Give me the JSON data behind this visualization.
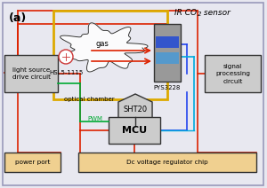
{
  "fig_label": "(a)",
  "bg_color": "#e8e8f0",
  "border_color": "#9999bb",
  "yellow_border": "#ddaa00",
  "gray_box": "#cccccc",
  "tan_box": "#f0d090",
  "red": "#dd2200",
  "blue": "#2244ee",
  "cyan": "#00aadd",
  "green": "#00aa33",
  "dark": "#333333",
  "lw": 1.2,
  "labels": {
    "fig": "(a)",
    "ir_co2": "IR CO",
    "sub2": "2",
    "sensor": " sensor",
    "hsl": "HSL5-1115",
    "optical": "optical chamber",
    "gas": "gas",
    "pys": "PYS3228",
    "sht": "SHT20",
    "mcu": "MCU",
    "ls": "light source\ndrive circuit",
    "sig": "signal\nprocessing\ncircuit",
    "power": "power port",
    "dc": "Dc voltage regulator chip",
    "pwm": "PWM"
  }
}
